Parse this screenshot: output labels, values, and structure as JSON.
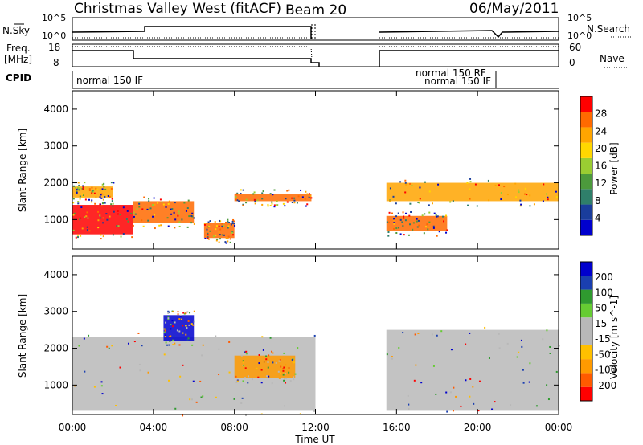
{
  "header": {
    "station": "Christmas Valley West (fitACF)",
    "beam": "Beam 20",
    "date": "06/May/2011"
  },
  "left_labels": {
    "nsky": "N.Sky",
    "freq_line1": "Freq.",
    "freq_line2": "[MHz]",
    "cpid": "CPID"
  },
  "right_labels": {
    "nsearch": "N.Search",
    "nave": "Nave"
  },
  "strip_ticks": {
    "nsky_top": "10^5",
    "nsky_bottom": "10^0",
    "nsearch_top": "10^5",
    "nsearch_bottom": "10^0",
    "freq_top": "18",
    "freq_bottom": "8",
    "nave_top": "60",
    "nave_bottom": "0"
  },
  "cpid_labels": {
    "left": "normal 150 IF",
    "right_top": "normal 150 RF",
    "right_bottom": "normal 150 IF"
  },
  "colors": {
    "power_scale": [
      "#0000cd",
      "#1a3d9c",
      "#2f7f6a",
      "#4c9a3c",
      "#9acd32",
      "#ffd700",
      "#ffa500",
      "#ff6a00",
      "#ff0000"
    ],
    "velocity_scale": [
      "#ff0000",
      "#ff5a00",
      "#ff9a00",
      "#ffc000",
      "#b8b8b8",
      "#b8b8b8",
      "#66cc33",
      "#2f9a2f",
      "#1a3fb0",
      "#0000cd"
    ],
    "no_data_gap_start": "12:00",
    "no_data_gap_end": "15:20"
  },
  "chart_data": [
    {
      "type": "heatmap",
      "panel": "power",
      "ylabel": "Slant Range [km]",
      "colorbar_label": "Power [dB]",
      "colorbar_ticks": [
        "28",
        "24",
        "20",
        "16",
        "12",
        "8",
        "4"
      ],
      "yticks": [
        "1000",
        "2000",
        "3000",
        "4000"
      ],
      "ylim": [
        200,
        4500
      ],
      "xlim": [
        "00:00",
        "24:00"
      ],
      "data_gap": [
        "12:00",
        "15:20"
      ],
      "bands": [
        {
          "t0": 0.0,
          "t1": 3.0,
          "r0": 600,
          "r1": 1400,
          "power": 26
        },
        {
          "t0": 3.0,
          "t1": 6.0,
          "r0": 900,
          "r1": 1500,
          "power": 24
        },
        {
          "t0": 0.0,
          "t1": 2.0,
          "r0": 1600,
          "r1": 1900,
          "power": 22
        },
        {
          "t0": 6.5,
          "t1": 8.0,
          "r0": 500,
          "r1": 900,
          "power": 24
        },
        {
          "t0": 8.0,
          "t1": 11.8,
          "r0": 1500,
          "r1": 1700,
          "power": 24
        },
        {
          "t0": 15.5,
          "t1": 24.0,
          "r0": 1500,
          "r1": 2000,
          "power": 22
        },
        {
          "t0": 15.5,
          "t1": 18.5,
          "r0": 700,
          "r1": 1100,
          "power": 24
        }
      ]
    },
    {
      "type": "heatmap",
      "panel": "velocity",
      "ylabel": "Slant Range [km]",
      "colorbar_label": "Velocity [m s^-1]",
      "colorbar_ticks": [
        "200",
        "100",
        "50",
        "15",
        "-15",
        "-50",
        "-100",
        "-200"
      ],
      "yticks": [
        "1000",
        "2000",
        "3000",
        "4000"
      ],
      "ylim": [
        200,
        4500
      ],
      "xlim": [
        "00:00",
        "24:00"
      ],
      "data_gap": [
        "12:00",
        "15:20"
      ],
      "bands": [
        {
          "t0": 0.0,
          "t1": 12.0,
          "r0": 300,
          "r1": 2300,
          "velocity": 0
        },
        {
          "t0": 15.5,
          "t1": 24.0,
          "r0": 300,
          "r1": 2500,
          "velocity": 0
        },
        {
          "t0": 4.5,
          "t1": 6.0,
          "r0": 2200,
          "r1": 2900,
          "velocity": 150
        },
        {
          "t0": 8.0,
          "t1": 11.0,
          "r0": 1200,
          "r1": 1800,
          "velocity": -60
        }
      ]
    }
  ],
  "xaxis": {
    "ticks": [
      "00:00",
      "04:00",
      "08:00",
      "12:00",
      "16:00",
      "20:00",
      "00:00"
    ],
    "label": "Time UT"
  }
}
